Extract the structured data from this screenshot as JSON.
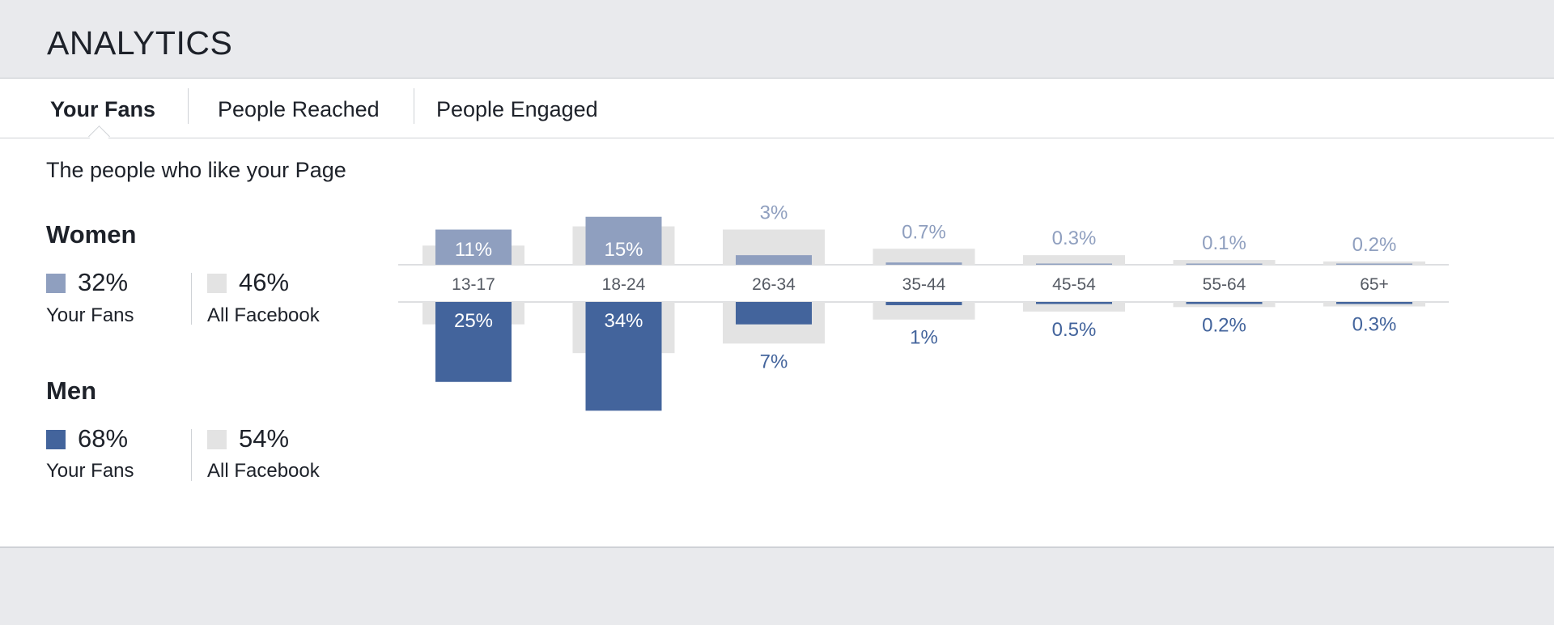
{
  "header": {
    "title": "ANALYTICS"
  },
  "tabs": [
    {
      "label": "Your Fans",
      "active": true
    },
    {
      "label": "People Reached",
      "active": false
    },
    {
      "label": "People Engaged",
      "active": false
    }
  ],
  "subtitle": "The people who like your Page",
  "women": {
    "title": "Women",
    "fans_pct": "32%",
    "fans_label": "Your Fans",
    "all_pct": "46%",
    "all_label": "All Facebook"
  },
  "men": {
    "title": "Men",
    "fans_pct": "68%",
    "fans_label": "Your Fans",
    "all_pct": "54%",
    "all_label": "All Facebook"
  },
  "colors": {
    "women_fans": "#8f9fbf",
    "men_fans": "#43649c",
    "all_facebook": "#e3e3e3",
    "women_label": "#8f9fbf",
    "men_label": "#43649c"
  },
  "chart_data": {
    "type": "bar",
    "categories": [
      "13-17",
      "18-24",
      "26-34",
      "35-44",
      "45-54",
      "55-64",
      "65+"
    ],
    "series": [
      {
        "name": "Women Your Fans",
        "values": [
          11,
          15,
          3,
          0.7,
          0.3,
          0.1,
          0.2
        ],
        "labels": [
          "11%",
          "15%",
          "3%",
          "0.7%",
          "0.3%",
          "0.1%",
          "0.2%"
        ]
      },
      {
        "name": "Men Your Fans",
        "values": [
          25,
          34,
          7,
          1,
          0.5,
          0.2,
          0.3
        ],
        "labels": [
          "25%",
          "34%",
          "7%",
          "1%",
          "0.5%",
          "0.2%",
          "0.3%"
        ]
      },
      {
        "name": "Women All Facebook",
        "values": [
          6,
          12,
          11,
          5,
          3,
          1.5,
          1
        ]
      },
      {
        "name": "Men All Facebook",
        "values": [
          7,
          16,
          13,
          5.5,
          3,
          1.6,
          1.4
        ]
      }
    ]
  }
}
